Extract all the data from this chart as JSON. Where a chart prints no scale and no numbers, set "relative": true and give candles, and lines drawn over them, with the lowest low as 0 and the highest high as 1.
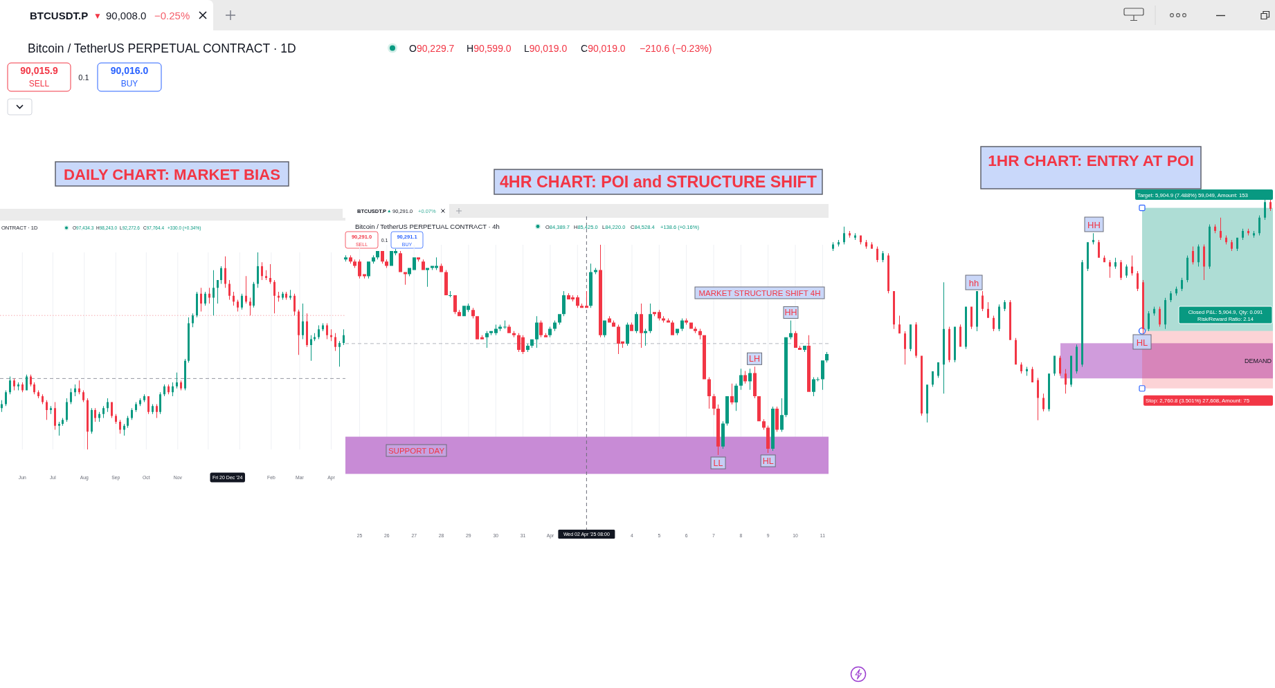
{
  "chart_data": [
    {
      "type": "other",
      "annotations": [
        "BTCUSDT.P",
        "▼",
        "90,008.0",
        "−0.25%",
        "Bitcoin / TetherUS PERPETUAL CONTRACT · 1D",
        "O90,229.7",
        "H90,599.0",
        "L90,019.0",
        "C90,019.0",
        "−210.6 (−0.23%)",
        "90,015.9",
        "SELL",
        "0.1",
        "90,016.0",
        "BUY"
      ]
    },
    {
      "type": "candlestick",
      "title": "DAILY CHART: MARKET BIAS",
      "relative": true,
      "x": [
        "2024-05-12",
        "2024-05-16",
        "2024-05-20",
        "2024-05-24",
        "2024-05-28",
        "2024-06-01",
        "2024-06-05",
        "2024-06-09",
        "2024-06-13",
        "2024-06-17",
        "2024-06-21",
        "2024-06-25",
        "2024-06-29",
        "2024-07-03",
        "2024-07-07",
        "2024-07-11",
        "2024-07-15",
        "2024-07-19",
        "2024-07-23",
        "2024-07-27",
        "2024-07-31",
        "2024-08-04",
        "2024-08-08",
        "2024-08-12",
        "2024-08-16",
        "2024-08-20",
        "2024-08-24",
        "2024-08-28",
        "2024-09-01",
        "2024-09-05",
        "2024-09-09",
        "2024-09-13",
        "2024-09-17",
        "2024-09-21",
        "2024-09-25",
        "2024-09-29",
        "2024-10-03",
        "2024-10-07",
        "2024-10-11",
        "2024-10-15",
        "2024-10-19",
        "2024-10-23",
        "2024-10-27",
        "2024-10-31",
        "2024-11-04",
        "2024-11-08",
        "2024-11-12",
        "2024-11-16",
        "2024-11-20",
        "2024-11-24",
        "2024-11-28",
        "2024-12-02",
        "2024-12-06",
        "2024-12-10",
        "2024-12-14",
        "2024-12-18",
        "2024-12-22",
        "2024-12-26",
        "2024-12-30",
        "2025-01-03",
        "2025-01-07",
        "2025-01-11",
        "2025-01-15",
        "2025-01-19",
        "2025-01-23",
        "2025-01-27",
        "2025-01-31",
        "2025-02-04",
        "2025-02-08",
        "2025-02-12",
        "2025-02-16",
        "2025-02-20",
        "2025-02-24",
        "2025-02-28",
        "2025-03-04",
        "2025-03-08",
        "2025-03-12",
        "2025-03-16",
        "2025-03-20",
        "2025-03-24",
        "2025-03-28",
        "2025-04-01",
        "2025-04-05",
        "2025-04-09",
        "2025-04-13"
      ],
      "ohlc": [
        [
          0.21,
          0.25,
          0.19,
          0.23
        ],
        [
          0.23,
          0.3,
          0.22,
          0.29
        ],
        [
          0.29,
          0.37,
          0.28,
          0.35
        ],
        [
          0.35,
          0.36,
          0.3,
          0.32
        ],
        [
          0.32,
          0.34,
          0.3,
          0.33
        ],
        [
          0.33,
          0.34,
          0.29,
          0.3
        ],
        [
          0.3,
          0.38,
          0.3,
          0.37
        ],
        [
          0.37,
          0.38,
          0.32,
          0.33
        ],
        [
          0.33,
          0.34,
          0.28,
          0.29
        ],
        [
          0.29,
          0.3,
          0.26,
          0.27
        ],
        [
          0.27,
          0.28,
          0.23,
          0.24
        ],
        [
          0.24,
          0.25,
          0.15,
          0.2
        ],
        [
          0.2,
          0.22,
          0.18,
          0.21
        ],
        [
          0.21,
          0.24,
          0.1,
          0.12
        ],
        [
          0.12,
          0.14,
          0.07,
          0.13
        ],
        [
          0.13,
          0.16,
          0.12,
          0.15
        ],
        [
          0.15,
          0.26,
          0.14,
          0.24
        ],
        [
          0.24,
          0.31,
          0.23,
          0.29
        ],
        [
          0.29,
          0.33,
          0.27,
          0.31
        ],
        [
          0.31,
          0.35,
          0.28,
          0.29
        ],
        [
          0.29,
          0.3,
          0.24,
          0.25
        ],
        [
          0.25,
          0.26,
          0,
          0.09
        ],
        [
          0.09,
          0.21,
          0.08,
          0.2
        ],
        [
          0.2,
          0.21,
          0.14,
          0.16
        ],
        [
          0.16,
          0.19,
          0.14,
          0.18
        ],
        [
          0.18,
          0.22,
          0.16,
          0.21
        ],
        [
          0.21,
          0.26,
          0.19,
          0.24
        ],
        [
          0.24,
          0.24,
          0.16,
          0.17
        ],
        [
          0.17,
          0.18,
          0.13,
          0.14
        ],
        [
          0.14,
          0.15,
          0.08,
          0.1
        ],
        [
          0.1,
          0.13,
          0.07,
          0.12
        ],
        [
          0.12,
          0.17,
          0.11,
          0.16
        ],
        [
          0.16,
          0.21,
          0.15,
          0.2
        ],
        [
          0.2,
          0.24,
          0.19,
          0.23
        ],
        [
          0.23,
          0.26,
          0.22,
          0.25
        ],
        [
          0.25,
          0.28,
          0.24,
          0.27
        ],
        [
          0.27,
          0.27,
          0.18,
          0.19
        ],
        [
          0.19,
          0.23,
          0.18,
          0.22
        ],
        [
          0.22,
          0.23,
          0.16,
          0.19
        ],
        [
          0.19,
          0.29,
          0.18,
          0.28
        ],
        [
          0.28,
          0.33,
          0.27,
          0.32
        ],
        [
          0.32,
          0.33,
          0.28,
          0.29
        ],
        [
          0.29,
          0.34,
          0.27,
          0.32
        ],
        [
          0.32,
          0.39,
          0.31,
          0.34
        ],
        [
          0.34,
          0.35,
          0.3,
          0.31
        ],
        [
          0.31,
          0.46,
          0.3,
          0.45
        ],
        [
          0.45,
          0.67,
          0.44,
          0.64
        ],
        [
          0.64,
          0.69,
          0.62,
          0.68
        ],
        [
          0.68,
          0.8,
          0.67,
          0.79
        ],
        [
          0.79,
          0.82,
          0.7,
          0.74
        ],
        [
          0.74,
          0.8,
          0.73,
          0.79
        ],
        [
          0.79,
          0.82,
          0.74,
          0.77
        ],
        [
          0.77,
          0.91,
          0.68,
          0.82
        ],
        [
          0.82,
          0.86,
          0.74,
          0.86
        ],
        [
          0.86,
          0.93,
          0.84,
          0.92
        ],
        [
          0.92,
          0.98,
          0.82,
          0.84
        ],
        [
          0.84,
          0.86,
          0.76,
          0.78
        ],
        [
          0.78,
          0.8,
          0.73,
          0.75
        ],
        [
          0.75,
          0.76,
          0.7,
          0.72
        ],
        [
          0.72,
          0.79,
          0.71,
          0.78
        ],
        [
          0.78,
          0.88,
          0.74,
          0.75
        ],
        [
          0.75,
          0.77,
          0.68,
          0.73
        ],
        [
          0.73,
          0.85,
          0.72,
          0.84
        ],
        [
          0.84,
          1,
          0.82,
          0.93
        ],
        [
          0.93,
          0.95,
          0.86,
          0.88
        ],
        [
          0.88,
          0.91,
          0.86,
          0.87
        ],
        [
          0.87,
          0.94,
          0.84,
          0.85
        ],
        [
          0.85,
          0.86,
          0.69,
          0.78
        ],
        [
          0.78,
          0.8,
          0.75,
          0.77
        ],
        [
          0.77,
          0.8,
          0.76,
          0.79
        ],
        [
          0.79,
          0.8,
          0.76,
          0.77
        ],
        [
          0.77,
          0.81,
          0.76,
          0.78
        ],
        [
          0.78,
          0.79,
          0.68,
          0.7
        ],
        [
          0.7,
          0.71,
          0.48,
          0.58
        ],
        [
          0.58,
          0.74,
          0.56,
          0.65
        ],
        [
          0.65,
          0.69,
          0.52,
          0.53
        ],
        [
          0.53,
          0.58,
          0.45,
          0.56
        ],
        [
          0.56,
          0.59,
          0.55,
          0.57
        ],
        [
          0.57,
          0.63,
          0.56,
          0.61
        ],
        [
          0.61,
          0.64,
          0.6,
          0.63
        ],
        [
          0.63,
          0.64,
          0.56,
          0.58
        ],
        [
          0.58,
          0.61,
          0.55,
          0.57
        ],
        [
          0.57,
          0.59,
          0.5,
          0.52
        ],
        [
          0.52,
          0.55,
          0.42,
          0.54
        ],
        [
          0.54,
          0.61,
          0.53,
          0.58
        ]
      ],
      "xlim": [
        "2024-05-10",
        "2025-04-15"
      ],
      "xticks": [
        {
          "value": "2024-06-01",
          "label": "Jun"
        },
        {
          "value": "2024-07-01",
          "label": "Jul"
        },
        {
          "value": "2024-08-01",
          "label": "Aug"
        },
        {
          "value": "2024-09-01",
          "label": "Sep"
        },
        {
          "value": "2024-10-01",
          "label": "Oct"
        },
        {
          "value": "2024-11-01",
          "label": "Nov"
        },
        {
          "value": "2024-12-01",
          "label": null
        },
        {
          "value": "2025-01-01",
          "label": null
        },
        {
          "value": "2025-02-01",
          "label": "Feb"
        },
        {
          "value": "2025-03-01",
          "label": "Mar"
        },
        {
          "value": "2025-04-01",
          "label": "Apr"
        }
      ],
      "grid": "x",
      "ref_lines": [
        {
          "axis": "y",
          "value": 0.68,
          "color": "#f7a8ae",
          "line_style": "dotted"
        },
        {
          "axis": "y",
          "value": 0.36,
          "color": "#9598a1",
          "line_style": "dashed"
        }
      ],
      "annotations": [
        "ONTRACT · 1D",
        "O97,434.3",
        "H98,243.0",
        "L92,272.6",
        "C97,764.4",
        "+330.0 (+0.34%)",
        "Fri 20 Dec '24"
      ]
    },
    {
      "type": "candlestick",
      "title": "4HR CHART: POI and STRUCTURE SHIFT",
      "relative": true,
      "x": [
        "2025-03-24T12:00",
        "2025-03-24T16:00",
        "2025-03-24T20:00",
        "2025-03-25T00:00",
        "2025-03-25T04:00",
        "2025-03-25T08:00",
        "2025-03-25T12:00",
        "2025-03-25T16:00",
        "2025-03-25T20:00",
        "2025-03-26T00:00",
        "2025-03-26T04:00",
        "2025-03-26T08:00",
        "2025-03-26T12:00",
        "2025-03-26T16:00",
        "2025-03-26T20:00",
        "2025-03-27T00:00",
        "2025-03-27T04:00",
        "2025-03-27T08:00",
        "2025-03-27T12:00",
        "2025-03-27T16:00",
        "2025-03-27T20:00",
        "2025-03-28T00:00",
        "2025-03-28T04:00",
        "2025-03-28T08:00",
        "2025-03-28T12:00",
        "2025-03-28T16:00",
        "2025-03-28T20:00",
        "2025-03-29T00:00",
        "2025-03-29T04:00",
        "2025-03-29T08:00",
        "2025-03-29T12:00",
        "2025-03-29T16:00",
        "2025-03-29T20:00",
        "2025-03-30T00:00",
        "2025-03-30T04:00",
        "2025-03-30T08:00",
        "2025-03-30T12:00",
        "2025-03-30T16:00",
        "2025-03-30T20:00",
        "2025-03-31T00:00",
        "2025-03-31T04:00",
        "2025-03-31T08:00",
        "2025-03-31T12:00",
        "2025-03-31T16:00",
        "2025-03-31T20:00",
        "2025-04-01T00:00",
        "2025-04-01T04:00",
        "2025-04-01T08:00",
        "2025-04-01T12:00",
        "2025-04-01T16:00",
        "2025-04-01T20:00",
        "2025-04-02T00:00",
        "2025-04-02T04:00",
        "2025-04-02T08:00",
        "2025-04-02T12:00",
        "2025-04-02T16:00",
        "2025-04-02T20:00",
        "2025-04-03T00:00",
        "2025-04-03T04:00",
        "2025-04-03T08:00",
        "2025-04-03T12:00",
        "2025-04-03T16:00",
        "2025-04-03T20:00",
        "2025-04-04T00:00",
        "2025-04-04T04:00",
        "2025-04-04T08:00",
        "2025-04-04T12:00",
        "2025-04-04T16:00",
        "2025-04-04T20:00",
        "2025-04-05T00:00",
        "2025-04-05T04:00",
        "2025-04-05T08:00",
        "2025-04-05T12:00",
        "2025-04-05T16:00",
        "2025-04-05T20:00",
        "2025-04-06T00:00",
        "2025-04-06T04:00",
        "2025-04-06T08:00",
        "2025-04-06T12:00",
        "2025-04-06T16:00",
        "2025-04-06T20:00",
        "2025-04-07T00:00",
        "2025-04-07T04:00",
        "2025-04-07T08:00",
        "2025-04-07T12:00",
        "2025-04-07T16:00",
        "2025-04-07T20:00",
        "2025-04-08T00:00",
        "2025-04-08T04:00",
        "2025-04-08T08:00",
        "2025-04-08T12:00",
        "2025-04-08T16:00",
        "2025-04-08T20:00",
        "2025-04-09T00:00",
        "2025-04-09T04:00",
        "2025-04-09T08:00",
        "2025-04-09T12:00",
        "2025-04-09T16:00",
        "2025-04-09T20:00",
        "2025-04-10T00:00",
        "2025-04-10T04:00",
        "2025-04-10T08:00",
        "2025-04-10T12:00",
        "2025-04-10T16:00",
        "2025-04-10T20:00",
        "2025-04-11T00:00",
        "2025-04-11T04:00"
      ],
      "ohlc": [
        [
          0.93,
          0.95,
          0.92,
          0.94
        ],
        [
          0.94,
          0.95,
          0.91,
          0.92
        ],
        [
          0.92,
          0.93,
          0.89,
          0.9
        ],
        [
          0.92,
          0.93,
          0.84,
          0.85
        ],
        [
          0.86,
          0.86,
          0.84,
          0.85
        ],
        [
          0.85,
          0.92,
          0.84,
          0.92
        ],
        [
          0.92,
          0.95,
          0.91,
          0.94
        ],
        [
          0.94,
          0.97,
          0.93,
          0.97
        ],
        [
          0.97,
          0.97,
          0.91,
          0.92
        ],
        [
          0.92,
          0.93,
          0.89,
          0.9
        ],
        [
          0.9,
          0.97,
          0.9,
          0.97
        ],
        [
          0.96,
          0.98,
          0.95,
          0.97
        ],
        [
          0.96,
          0.97,
          0.87,
          0.87
        ],
        [
          0.87,
          0.87,
          0.81,
          0.86
        ],
        [
          0.86,
          0.89,
          0.85,
          0.89
        ],
        [
          0.88,
          0.94,
          0.88,
          0.94
        ],
        [
          0.94,
          0.94,
          0.92,
          0.93
        ],
        [
          0.92,
          0.93,
          0.88,
          0.88
        ],
        [
          0.88,
          0.89,
          0.8,
          0.89
        ],
        [
          0.89,
          0.9,
          0.88,
          0.9
        ],
        [
          0.89,
          0.94,
          0.88,
          0.9
        ],
        [
          0.9,
          0.91,
          0.87,
          0.87
        ],
        [
          0.87,
          0.88,
          0.76,
          0.76
        ],
        [
          0.76,
          0.78,
          0.75,
          0.76
        ],
        [
          0.76,
          0.76,
          0.67,
          0.68
        ],
        [
          0.68,
          0.69,
          0.66,
          0.66
        ],
        [
          0.66,
          0.71,
          0.66,
          0.71
        ],
        [
          0.69,
          0.72,
          0.68,
          0.71
        ],
        [
          0.69,
          0.7,
          0.65,
          0.66
        ],
        [
          0.66,
          0.66,
          0.55,
          0.55
        ],
        [
          0.56,
          0.57,
          0.55,
          0.55
        ],
        [
          0.56,
          0.59,
          0.51,
          0.58
        ],
        [
          0.58,
          0.59,
          0.57,
          0.59
        ],
        [
          0.58,
          0.62,
          0.57,
          0.6
        ],
        [
          0.6,
          0.62,
          0.59,
          0.61
        ],
        [
          0.61,
          0.64,
          0.6,
          0.61
        ],
        [
          0.61,
          0.62,
          0.58,
          0.58
        ],
        [
          0.58,
          0.59,
          0.56,
          0.57
        ],
        [
          0.57,
          0.58,
          0.49,
          0.5
        ],
        [
          0.56,
          0.57,
          0.48,
          0.49
        ],
        [
          0.5,
          0.53,
          0.49,
          0.52
        ],
        [
          0.52,
          0.55,
          0.51,
          0.55
        ],
        [
          0.55,
          0.66,
          0.51,
          0.63
        ],
        [
          0.63,
          0.64,
          0.56,
          0.57
        ],
        [
          0.57,
          0.58,
          0.56,
          0.56
        ],
        [
          0.57,
          0.61,
          0.56,
          0.6
        ],
        [
          0.6,
          0.64,
          0.59,
          0.63
        ],
        [
          0.63,
          0.67,
          0.62,
          0.67
        ],
        [
          0.67,
          0.78,
          0.66,
          0.76
        ],
        [
          0.76,
          0.77,
          0.74,
          0.74
        ],
        [
          0.75,
          0.76,
          0.73,
          0.74
        ],
        [
          0.75,
          0.76,
          0.7,
          0.71
        ],
        [
          0.71,
          0.72,
          0.7,
          0.7
        ],
        [
          0.71,
          0.78,
          0.7,
          0.7
        ],
        [
          0.71,
          0.91,
          0.7,
          0.87
        ],
        [
          0.87,
          0.89,
          0.86,
          0.88
        ],
        [
          0.88,
          1,
          0.56,
          0.57
        ],
        [
          0.57,
          0.64,
          0.56,
          0.64
        ],
        [
          0.65,
          0.66,
          0.63,
          0.63
        ],
        [
          0.63,
          0.64,
          0.61,
          0.61
        ],
        [
          0.61,
          0.62,
          0.48,
          0.53
        ],
        [
          0.54,
          0.54,
          0.51,
          0.53
        ],
        [
          0.53,
          0.63,
          0.52,
          0.62
        ],
        [
          0.62,
          0.63,
          0.59,
          0.59
        ],
        [
          0.59,
          0.68,
          0.58,
          0.67
        ],
        [
          0.67,
          0.72,
          0.51,
          0.58
        ],
        [
          0.58,
          0.6,
          0.52,
          0.59
        ],
        [
          0.59,
          0.72,
          0.58,
          0.67
        ],
        [
          0.68,
          0.68,
          0.66,
          0.67
        ],
        [
          0.68,
          0.69,
          0.64,
          0.65
        ],
        [
          0.65,
          0.66,
          0.63,
          0.64
        ],
        [
          0.64,
          0.65,
          0.63,
          0.63
        ],
        [
          0.63,
          0.64,
          0.57,
          0.57
        ],
        [
          0.58,
          0.6,
          0.57,
          0.6
        ],
        [
          0.6,
          0.65,
          0.59,
          0.64
        ],
        [
          0.64,
          0.65,
          0.62,
          0.63
        ],
        [
          0.63,
          0.63,
          0.6,
          0.6
        ],
        [
          0.6,
          0.61,
          0.58,
          0.59
        ],
        [
          0.59,
          0.6,
          0.55,
          0.57
        ],
        [
          0.57,
          0.57,
          0.36,
          0.36
        ],
        [
          0.36,
          0.37,
          0.22,
          0.28
        ],
        [
          0.28,
          0.29,
          0.19,
          0.22
        ],
        [
          0.22,
          0.24,
          0,
          0.04
        ],
        [
          0.04,
          0.16,
          0.03,
          0.15
        ],
        [
          0.15,
          0.28,
          0.14,
          0.28
        ],
        [
          0.28,
          0.34,
          0.24,
          0.25
        ],
        [
          0.25,
          0.34,
          0.21,
          0.33
        ],
        [
          0.33,
          0.41,
          0.31,
          0.38
        ],
        [
          0.38,
          0.4,
          0.34,
          0.35
        ],
        [
          0.35,
          0.41,
          0.31,
          0.39
        ],
        [
          0.39,
          0.42,
          0.27,
          0.28
        ],
        [
          0.28,
          0.28,
          0.16,
          0.16
        ],
        [
          0.16,
          0.17,
          0.12,
          0.13
        ],
        [
          0.13,
          0.14,
          0.01,
          0.03
        ],
        [
          0.03,
          0.23,
          0.02,
          0.22
        ],
        [
          0.22,
          0.23,
          0.11,
          0.12
        ],
        [
          0.12,
          0.27,
          0.11,
          0.19
        ],
        [
          0.19,
          0.56,
          0.18,
          0.56
        ],
        [
          0.56,
          0.64,
          0.55,
          0.58
        ],
        [
          0.58,
          0.59,
          0.51,
          0.51
        ],
        [
          0.51,
          0.52,
          0.5,
          0.5
        ],
        [
          0.5,
          0.52,
          0.49,
          0.52
        ],
        [
          0.52,
          0.57,
          0.3,
          0.3
        ],
        [
          0.3,
          0.37,
          0.28,
          0.36
        ],
        [
          0.36,
          0.37,
          0.35,
          0.36
        ],
        [
          0.36,
          0.45,
          0.31,
          0.45
        ],
        [
          0.45,
          0.49,
          0.44,
          0.48
        ]
      ],
      "xlim": [
        "2025-03-24T11:30",
        "2025-04-11T05:15"
      ],
      "xticks": [
        {
          "value": "2025-03-25",
          "label": "25"
        },
        {
          "value": "2025-03-26",
          "label": "26"
        },
        {
          "value": "2025-03-27",
          "label": "27"
        },
        {
          "value": "2025-03-28",
          "label": "28"
        },
        {
          "value": "2025-03-29",
          "label": "29"
        },
        {
          "value": "2025-03-30",
          "label": "30"
        },
        {
          "value": "2025-03-31",
          "label": "31"
        },
        {
          "value": "2025-04-01",
          "label": "Apr"
        },
        {
          "value": "2025-04-02",
          "label": null
        },
        {
          "value": "2025-04-03",
          "label": null
        },
        {
          "value": "2025-04-04",
          "label": "4"
        },
        {
          "value": "2025-04-05",
          "label": "5"
        },
        {
          "value": "2025-04-06",
          "label": "6"
        },
        {
          "value": "2025-04-07",
          "label": "7"
        },
        {
          "value": "2025-04-08",
          "label": "8"
        },
        {
          "value": "2025-04-09",
          "label": "9"
        },
        {
          "value": "2025-04-10",
          "label": "10"
        },
        {
          "value": "2025-04-11",
          "label": "11"
        }
      ],
      "grid": "x",
      "bands": [
        {
          "axis": "y",
          "from": -0.09,
          "to": 0.087,
          "label": "SUPPORT DAY",
          "color": "#c88bd6"
        }
      ],
      "ref_lines": [
        {
          "axis": "x",
          "value": "2025-04-02T08:00",
          "label": "Wed 02 Apr '25 08:00",
          "line_style": "dashed",
          "color": "#6a6d78"
        },
        {
          "axis": "y",
          "value": 0.53,
          "line_style": "dashed",
          "color": "#b2b5be"
        }
      ],
      "annotations": [
        "Bitcoin / TetherUS PERPETUAL CONTRACT · 4h",
        "O84,389.7",
        "H85,425.0",
        "L84,220.0",
        "C84,528.4",
        "+138.6 (+0.16%)",
        "BTCUSDT.P",
        "▲",
        "90,291.0",
        "+0.07%",
        "90,291.0",
        "SELL",
        "0.1",
        "90,291.1",
        "BUY",
        "MARKET STRUCTURE SHIFT 4H",
        {
          "text": "LH",
          "x": "2025-04-08T12:00",
          "y": 0.42
        },
        {
          "text": "HH",
          "x": "2025-04-09T20:00",
          "y": 0.64
        },
        {
          "text": "LL",
          "x": "2025-04-07T04:00",
          "y": 0
        },
        {
          "text": "HL",
          "x": "2025-04-09T00:00",
          "y": 0.01
        }
      ]
    },
    {
      "type": "candlestick",
      "title": "1HR CHART: ENTRY AT POI",
      "relative": true,
      "categories": [
        null,
        null,
        null,
        null,
        null,
        null,
        null,
        null,
        null,
        null,
        null,
        null,
        null,
        null,
        null,
        null,
        null,
        null,
        null,
        null,
        null,
        null,
        null,
        null,
        null,
        null,
        null,
        null,
        null,
        null,
        null,
        null,
        null,
        null,
        null,
        null,
        null,
        null,
        null,
        null,
        null,
        null,
        null,
        null,
        null,
        null,
        null,
        null,
        null,
        null,
        null,
        null,
        null,
        null,
        null,
        null,
        null,
        null,
        null,
        null,
        null,
        null,
        null,
        null,
        null,
        null,
        null,
        null,
        null,
        null,
        null,
        null,
        null,
        null,
        null,
        null,
        null,
        null,
        null,
        null
      ],
      "ohlc": [
        [
          0.78,
          0.81,
          0.77,
          0.8
        ],
        [
          0.8,
          0.82,
          0.79,
          0.81
        ],
        [
          0.81,
          0.88,
          0.8,
          0.85
        ],
        [
          0.85,
          0.86,
          0.83,
          0.84
        ],
        [
          0.83,
          0.85,
          0.82,
          0.84
        ],
        [
          0.84,
          0.84,
          0.8,
          0.81
        ],
        [
          0.81,
          0.82,
          0.78,
          0.79
        ],
        [
          0.8,
          0.81,
          0.78,
          0.78
        ],
        [
          0.78,
          0.79,
          0.72,
          0.73
        ],
        [
          0.73,
          0.77,
          0.72,
          0.76
        ],
        [
          0.75,
          0.76,
          0.58,
          0.59
        ],
        [
          0.59,
          0.59,
          0.42,
          0.44
        ],
        [
          0.44,
          0.48,
          0.4,
          0.4
        ],
        [
          0.4,
          0.41,
          0.26,
          0.33
        ],
        [
          0.33,
          0.44,
          0.32,
          0.44
        ],
        [
          0.44,
          0.45,
          0.29,
          0.3
        ],
        [
          0.3,
          0.3,
          0.03,
          0.04
        ],
        [
          0.04,
          0.17,
          0,
          0.17
        ],
        [
          0.17,
          0.23,
          0.16,
          0.23
        ],
        [
          0.21,
          0.27,
          0.2,
          0.27
        ],
        [
          0.26,
          0.63,
          0.13,
          0.42
        ],
        [
          0.42,
          0.43,
          0.27,
          0.28
        ],
        [
          0.28,
          0.43,
          0.27,
          0.43
        ],
        [
          0.43,
          0.44,
          0.34,
          0.34
        ],
        [
          0.34,
          0.52,
          0.33,
          0.52
        ],
        [
          0.52,
          0.52,
          0.42,
          0.43
        ],
        [
          0.43,
          0.59,
          0.41,
          0.59
        ],
        [
          0.57,
          0.59,
          0.5,
          0.51
        ],
        [
          0.51,
          0.54,
          0.47,
          0.47
        ],
        [
          0.47,
          0.48,
          0.41,
          0.42
        ],
        [
          0.42,
          0.53,
          0.41,
          0.52
        ],
        [
          0.51,
          0.55,
          0.5,
          0.54
        ],
        [
          0.54,
          0.55,
          0.37,
          0.37
        ],
        [
          0.37,
          0.38,
          0.26,
          0.26
        ],
        [
          0.26,
          0.27,
          0.22,
          0.23
        ],
        [
          0.23,
          0.25,
          0.21,
          0.24
        ],
        [
          0.24,
          0.25,
          0.18,
          0.18
        ],
        [
          0.19,
          0.2,
          0.01,
          0.11
        ],
        [
          0.11,
          0.13,
          0.05,
          0.06
        ],
        [
          0.06,
          0.22,
          0.05,
          0.22
        ],
        [
          0.22,
          0.3,
          0.21,
          0.3
        ],
        [
          0.29,
          0.3,
          0.21,
          0.22
        ],
        [
          0.22,
          0.24,
          0.13,
          0.17
        ],
        [
          0.17,
          0.3,
          0.16,
          0.3
        ],
        [
          0.23,
          0.35,
          0.22,
          0.34
        ],
        [
          0.26,
          0.73,
          0.25,
          0.72
        ],
        [
          0.69,
          0.81,
          0.68,
          0.81
        ],
        [
          0.81,
          0.85,
          0.8,
          0.82
        ],
        [
          0.81,
          0.82,
          0.74,
          0.74
        ],
        [
          0.74,
          0.75,
          0.72,
          0.72
        ],
        [
          0.72,
          0.73,
          0.65,
          0.7
        ],
        [
          0.7,
          0.74,
          0.69,
          0.72
        ],
        [
          0.72,
          0.73,
          0.64,
          0.65
        ],
        [
          0.66,
          0.71,
          0.65,
          0.7
        ],
        [
          0.7,
          0.75,
          0.66,
          0.67
        ],
        [
          0.67,
          0.68,
          0.59,
          0.6
        ],
        [
          0.63,
          0.64,
          0.4,
          0.42
        ],
        [
          0.42,
          0.5,
          0.41,
          0.49
        ],
        [
          0.49,
          0.52,
          0.48,
          0.51
        ],
        [
          0.51,
          0.52,
          0.43,
          0.44
        ],
        [
          0.44,
          0.56,
          0.42,
          0.55
        ],
        [
          0.55,
          0.59,
          0.54,
          0.58
        ],
        [
          0.58,
          0.61,
          0.57,
          0.6
        ],
        [
          0.6,
          0.65,
          0.59,
          0.64
        ],
        [
          0.64,
          0.75,
          0.63,
          0.74
        ],
        [
          0.77,
          0.79,
          0.71,
          0.72
        ],
        [
          0.72,
          0.8,
          0.7,
          0.79
        ],
        [
          0.79,
          0.8,
          0.64,
          0.7
        ],
        [
          0.7,
          0.89,
          0.69,
          0.88
        ],
        [
          0.88,
          0.89,
          0.85,
          0.86
        ],
        [
          0.86,
          0.92,
          0.82,
          0.83
        ],
        [
          0.83,
          0.84,
          0.8,
          0.81
        ],
        [
          0.81,
          0.82,
          0.77,
          0.78
        ],
        [
          0.78,
          0.83,
          0.77,
          0.83
        ],
        [
          0.83,
          0.87,
          0.82,
          0.86
        ],
        [
          0.86,
          0.87,
          0.84,
          0.85
        ],
        [
          0.84,
          0.86,
          0.83,
          0.85
        ],
        [
          0.85,
          0.93,
          0.84,
          0.92
        ],
        [
          0.92,
          1,
          0.91,
          0.99
        ],
        [
          0.99,
          1,
          0.95,
          0.96
        ]
      ],
      "bands": [
        {
          "axis": "y",
          "from": 0.198,
          "to": 0.356,
          "label": "DEMAND",
          "color": "#c88bd6"
        },
        {
          "axis": "y",
          "from": 0.411,
          "to": 0.964,
          "label": "Target: 5,904.9 (7.488%) 59,049, Amount: 153",
          "color": "#089981"
        },
        {
          "axis": "y",
          "from": 0.153,
          "to": 0.411,
          "label": "Stop: 2,760.8 (3.501%) 27,608, Amount: 75",
          "color": "#f23645"
        }
      ],
      "annotations": [
        "hh",
        "HH",
        "HL",
        "Closed P&L: 5,904.9, Qty: 0.091",
        "Risk/Reward Ratio: 2.14"
      ]
    }
  ]
}
